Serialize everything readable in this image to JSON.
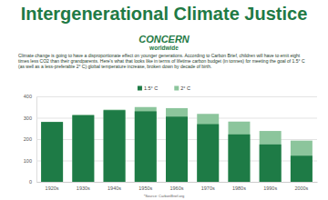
{
  "chart_data": {
    "type": "bar",
    "title": "Intergenerational Climate Justice",
    "subtitle": "Climate change is going to have a disproportionate effect on younger generations. According to Carbon Brief, children will have to emit eight times less CO2 than their grandparents. Here's what that looks like in terms of lifetime carbon budget (in tonnes) for meeting the goal of 1.5° C (as well as a less-preferable 2° C) global temperature increase, broken down by decade of birth.",
    "annotations": [
      "CONCERN",
      "worldwide",
      "*Source: CarbonBrief.org"
    ],
    "categories": [
      "1920s",
      "1930s",
      "1940s",
      "1950s",
      "1960s",
      "1970s",
      "1980s",
      "1990s",
      "2000s"
    ],
    "series": [
      {
        "name": "1.5° C",
        "color": "#1e7b46",
        "values": [
          280,
          312,
          335,
          330,
          305,
          270,
          222,
          175,
          122
        ]
      },
      {
        "name": "2° C",
        "color": "#8cc59c",
        "values": [
          281,
          313,
          338,
          350,
          345,
          318,
          282,
          238,
          193
        ]
      }
    ],
    "ylim": [
      0,
      400
    ],
    "yticks": [
      0,
      100,
      200,
      300,
      400
    ],
    "grid": true,
    "legend": "top"
  }
}
